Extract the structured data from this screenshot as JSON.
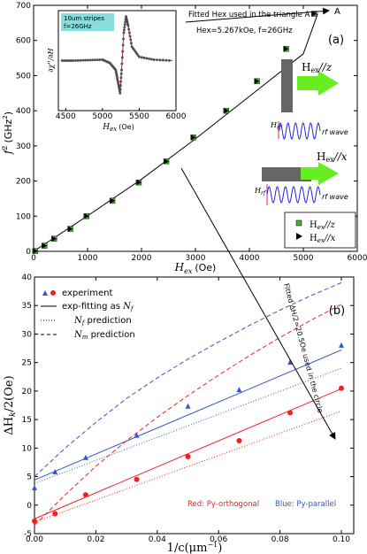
{
  "panel_a": {
    "tag": "(a)",
    "ylabel_base": "f",
    "ylabel_sup": "2",
    "ylabel_unit": "(GHz",
    "ylabel_unit_sup": "2",
    "ylabel_close": ")",
    "xlabel_main": "H",
    "xlabel_sub": "ex",
    "xlabel_unit": "(Oe)",
    "annotation_line1": "Fitted Hex used in the triangle A",
    "annotation_line2": "Hex=5.267kOe, f=26GHz",
    "point_label": "A",
    "legend": [
      {
        "main": "H",
        "sub": "ex",
        "rest": "//z"
      },
      {
        "main": "H",
        "sub": "ex",
        "rest": "//x"
      }
    ],
    "schematic": {
      "hex_z_main": "H",
      "hex_z_sub": "ex",
      "hex_z_rest": "//z",
      "hex_x_main": "H",
      "hex_x_sub": "ex",
      "hex_x_rest": "//x",
      "hrf_main": "H",
      "hrf_sub": "rf",
      "rf_wave": "rf wave"
    },
    "inset": {
      "tag_line1": "10um stripes",
      "tag_line2": "f=26GHz",
      "ylabel": "∂χ''/∂H",
      "xlabel_main": "H",
      "xlabel_sub": "ex",
      "xlabel_unit": "(Oe)"
    }
  },
  "panel_b": {
    "tag": "(b)",
    "ylabel": "ΔH",
    "ylabel_sub": "k",
    "ylabel_rest": "/2(Oe)",
    "xlabel": "1/c(μm",
    "xlabel_sup": "−1",
    "xlabel_close": ")",
    "legend": [
      {
        "label": "experiment",
        "var": "",
        "var_sub": ""
      },
      {
        "label": "exp-fitting as ",
        "var": "N",
        "var_sub": "f"
      },
      {
        "label": " prediction",
        "var": "N",
        "var_sub": "f"
      },
      {
        "label": " prediction",
        "var": "N",
        "var_sub": "m"
      }
    ],
    "annotation": "Fitted ΔH/2=20.5Oe used in the circle",
    "note_red": "Red: Py-orthogonal",
    "note_blue": "Blue: Py-parallel"
  },
  "colors": {
    "green": "#44aa33",
    "green_arrow": "#66ee22",
    "red": "#ee2222",
    "blue": "#3355cc",
    "inset_tag": "#88dddd",
    "schematic_bar": "#666666",
    "wave": "#2222ee",
    "hrf": "#dd2266"
  },
  "chart_data": [
    {
      "type": "scatter",
      "title": "",
      "xlabel": "Hex (Oe)",
      "ylabel": "f² (GHz²)",
      "xlim": [
        0,
        6000
      ],
      "ylim": [
        0,
        700
      ],
      "xticks": [
        0,
        1000,
        2000,
        3000,
        4000,
        5000,
        6000
      ],
      "yticks": [
        0,
        100,
        200,
        300,
        400,
        500,
        600,
        700
      ],
      "legend_position": "bottom-right",
      "series": [
        {
          "name": "Hex//z",
          "marker": "square",
          "color": "#44aa33",
          "x": [
            30,
            200,
            380,
            680,
            980,
            1460,
            1950,
            2460,
            2960,
            3570,
            4140,
            4680,
            5200
          ],
          "y": [
            1,
            16,
            36,
            64,
            100,
            144,
            196,
            256,
            324,
            400,
            484,
            576,
            676
          ]
        },
        {
          "name": "Hex//x",
          "marker": "triangle-right",
          "color": "#000000",
          "x": [
            30,
            200,
            380,
            680,
            980,
            1460,
            1950,
            2460,
            2960,
            3570,
            4140,
            4680,
            5200
          ],
          "y": [
            1,
            16,
            36,
            64,
            100,
            144,
            196,
            256,
            324,
            400,
            484,
            576,
            676
          ]
        },
        {
          "name": "",
          "style": "line",
          "color": "#000000",
          "x": [
            0,
            1000,
            2000,
            3000,
            4000,
            5000,
            5267
          ],
          "y": [
            0,
            101,
            205,
            320,
            441,
            562,
            676
          ]
        }
      ]
    },
    {
      "type": "line",
      "title": "",
      "xlabel": "Hex (Oe)",
      "ylabel": "∂χ''/∂H",
      "xlim": [
        4400,
        6000
      ],
      "xticks": [
        4500,
        5000,
        5500,
        6000
      ],
      "ylim": [
        -1,
        1
      ],
      "series": [
        {
          "name": "",
          "color": "#cc2222",
          "x": [
            4450,
            4600,
            4800,
            5000,
            5100,
            5180,
            5210,
            5240,
            5260,
            5290,
            5320,
            5350,
            5400,
            5500,
            5700,
            5950
          ],
          "y": [
            0,
            0,
            0.01,
            0.02,
            -0.05,
            -0.2,
            -0.45,
            -0.7,
            -0.2,
            0.6,
            0.95,
            0.75,
            0.3,
            0.08,
            0.02,
            0.0
          ]
        }
      ]
    },
    {
      "type": "line",
      "title": "",
      "xlabel": "1/c(μm⁻¹)",
      "ylabel": "ΔHk/2(Oe)",
      "xlim": [
        0,
        0.1
      ],
      "ylim": [
        -5,
        40
      ],
      "xticks": [
        0.0,
        0.02,
        0.04,
        0.06,
        0.08,
        0.1
      ],
      "yticks": [
        -5,
        0,
        5,
        10,
        15,
        20,
        25,
        30,
        35,
        40
      ],
      "legend_position": "top-left",
      "series": [
        {
          "name": "experiment",
          "marker": "triangle",
          "style": "none",
          "color": "#3355cc",
          "x": [
            0.0,
            0.0067,
            0.0167,
            0.0333,
            0.05,
            0.0667,
            0.0833,
            0.1
          ],
          "y": [
            3.0,
            5.8,
            8.3,
            12.2,
            17.3,
            20.2,
            25.0,
            28.0
          ]
        },
        {
          "name": "experiment",
          "marker": "circle",
          "style": "none",
          "color": "#ee2222",
          "x": [
            0.0,
            0.0067,
            0.0167,
            0.0333,
            0.05,
            0.0667,
            0.0833,
            0.1
          ],
          "y": [
            -2.8,
            -1.5,
            1.8,
            4.5,
            8.5,
            11.3,
            16.2,
            20.5
          ]
        },
        {
          "name": "exp-fitting as Nf",
          "style": "solid",
          "color": "#3355cc",
          "x": [
            0.0,
            0.1
          ],
          "y": [
            4.4,
            27.2
          ]
        },
        {
          "name": "exp-fitting as Nf",
          "style": "solid",
          "color": "#ee2222",
          "x": [
            0.0,
            0.1
          ],
          "y": [
            -2.4,
            20.4
          ]
        },
        {
          "name": "Nf prediction",
          "style": "dotted",
          "color": "#3355cc",
          "x": [
            0.0,
            0.1
          ],
          "y": [
            3.8,
            24.0
          ]
        },
        {
          "name": "Nf prediction",
          "style": "dotted",
          "color": "#ee2222",
          "x": [
            0.0,
            0.1
          ],
          "y": [
            -3.0,
            16.5
          ]
        },
        {
          "name": "Nm prediction",
          "style": "dashed",
          "color": "#3355cc",
          "x": [
            0.0,
            0.01,
            0.02,
            0.03,
            0.04,
            0.05,
            0.06,
            0.07,
            0.08,
            0.09,
            0.1
          ],
          "y": [
            5.0,
            10.0,
            14.5,
            18.7,
            22.3,
            25.6,
            28.6,
            31.5,
            34.2,
            36.7,
            39.0
          ]
        },
        {
          "name": "Nm prediction",
          "style": "dashed",
          "color": "#ee2222",
          "x": [
            0.0,
            0.01,
            0.02,
            0.03,
            0.04,
            0.05,
            0.06,
            0.07,
            0.08,
            0.09,
            0.1
          ],
          "y": [
            -3.5,
            1.8,
            6.8,
            11.3,
            15.4,
            19.2,
            22.8,
            26.2,
            29.4,
            32.4,
            35.2
          ]
        }
      ]
    }
  ]
}
